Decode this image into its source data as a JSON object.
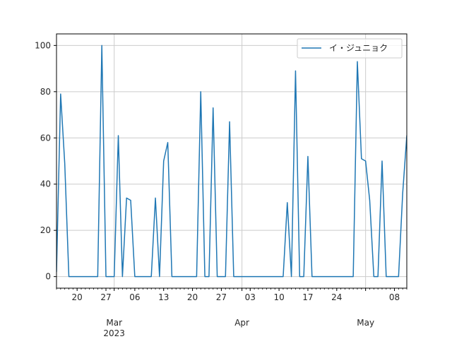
{
  "chart_data": {
    "type": "line",
    "title": "",
    "xlabel": "",
    "ylabel": "",
    "x_range": [
      "2023-02-15",
      "2023-05-11"
    ],
    "ylim": [
      -5,
      105
    ],
    "grid": true,
    "legend_position": "top-right",
    "series": [
      {
        "name": "イ・ジュニョク",
        "color": "#1f77b4",
        "points": [
          [
            "2023-02-15",
            2
          ],
          [
            "2023-02-16",
            79
          ],
          [
            "2023-02-17",
            49
          ],
          [
            "2023-02-18",
            0
          ],
          [
            "2023-02-19",
            0
          ],
          [
            "2023-02-20",
            0
          ],
          [
            "2023-02-21",
            0
          ],
          [
            "2023-02-22",
            0
          ],
          [
            "2023-02-23",
            0
          ],
          [
            "2023-02-24",
            0
          ],
          [
            "2023-02-25",
            0
          ],
          [
            "2023-02-26",
            100
          ],
          [
            "2023-02-27",
            0
          ],
          [
            "2023-02-28",
            0
          ],
          [
            "2023-03-01",
            0
          ],
          [
            "2023-03-02",
            61
          ],
          [
            "2023-03-03",
            0
          ],
          [
            "2023-03-04",
            34
          ],
          [
            "2023-03-05",
            33
          ],
          [
            "2023-03-06",
            0
          ],
          [
            "2023-03-07",
            0
          ],
          [
            "2023-03-08",
            0
          ],
          [
            "2023-03-09",
            0
          ],
          [
            "2023-03-10",
            0
          ],
          [
            "2023-03-11",
            34
          ],
          [
            "2023-03-12",
            0
          ],
          [
            "2023-03-13",
            50
          ],
          [
            "2023-03-14",
            58
          ],
          [
            "2023-03-15",
            0
          ],
          [
            "2023-03-16",
            0
          ],
          [
            "2023-03-17",
            0
          ],
          [
            "2023-03-18",
            0
          ],
          [
            "2023-03-19",
            0
          ],
          [
            "2023-03-20",
            0
          ],
          [
            "2023-03-21",
            0
          ],
          [
            "2023-03-22",
            80
          ],
          [
            "2023-03-23",
            0
          ],
          [
            "2023-03-24",
            0
          ],
          [
            "2023-03-25",
            73
          ],
          [
            "2023-03-26",
            0
          ],
          [
            "2023-03-27",
            0
          ],
          [
            "2023-03-28",
            0
          ],
          [
            "2023-03-29",
            67
          ],
          [
            "2023-03-30",
            0
          ],
          [
            "2023-03-31",
            0
          ],
          [
            "2023-04-01",
            0
          ],
          [
            "2023-04-02",
            0
          ],
          [
            "2023-04-03",
            0
          ],
          [
            "2023-04-04",
            0
          ],
          [
            "2023-04-05",
            0
          ],
          [
            "2023-04-06",
            0
          ],
          [
            "2023-04-07",
            0
          ],
          [
            "2023-04-08",
            0
          ],
          [
            "2023-04-09",
            0
          ],
          [
            "2023-04-10",
            0
          ],
          [
            "2023-04-11",
            0
          ],
          [
            "2023-04-12",
            32
          ],
          [
            "2023-04-13",
            0
          ],
          [
            "2023-04-14",
            89
          ],
          [
            "2023-04-15",
            0
          ],
          [
            "2023-04-16",
            0
          ],
          [
            "2023-04-17",
            52
          ],
          [
            "2023-04-18",
            0
          ],
          [
            "2023-04-19",
            0
          ],
          [
            "2023-04-20",
            0
          ],
          [
            "2023-04-21",
            0
          ],
          [
            "2023-04-22",
            0
          ],
          [
            "2023-04-23",
            0
          ],
          [
            "2023-04-24",
            0
          ],
          [
            "2023-04-25",
            0
          ],
          [
            "2023-04-26",
            0
          ],
          [
            "2023-04-27",
            0
          ],
          [
            "2023-04-28",
            0
          ],
          [
            "2023-04-29",
            93
          ],
          [
            "2023-04-30",
            51
          ],
          [
            "2023-05-01",
            50
          ],
          [
            "2023-05-02",
            33
          ],
          [
            "2023-05-03",
            0
          ],
          [
            "2023-05-04",
            0
          ],
          [
            "2023-05-05",
            50
          ],
          [
            "2023-05-06",
            0
          ],
          [
            "2023-05-07",
            0
          ],
          [
            "2023-05-08",
            0
          ],
          [
            "2023-05-09",
            0
          ],
          [
            "2023-05-10",
            36
          ],
          [
            "2023-05-11",
            61
          ],
          [
            "2023-05-12",
            0
          ]
        ]
      }
    ],
    "y_ticks": [
      0,
      20,
      40,
      60,
      80,
      100
    ],
    "x_major_ticks": [
      {
        "date": "2023-02-20",
        "label": "20"
      },
      {
        "date": "2023-02-27",
        "label": "27"
      },
      {
        "date": "2023-03-01",
        "label": "Mar",
        "sublabel": "2023",
        "month": true
      },
      {
        "date": "2023-03-06",
        "label": "06"
      },
      {
        "date": "2023-03-13",
        "label": "13"
      },
      {
        "date": "2023-03-20",
        "label": "20"
      },
      {
        "date": "2023-03-27",
        "label": "27"
      },
      {
        "date": "2023-04-01",
        "label": "Apr",
        "month": true
      },
      {
        "date": "2023-04-03",
        "label": "03"
      },
      {
        "date": "2023-04-10",
        "label": "10"
      },
      {
        "date": "2023-04-17",
        "label": "17"
      },
      {
        "date": "2023-04-24",
        "label": "24"
      },
      {
        "date": "2023-05-01",
        "label": "May",
        "month": true
      },
      {
        "date": "2023-05-08",
        "label": "08"
      }
    ]
  }
}
